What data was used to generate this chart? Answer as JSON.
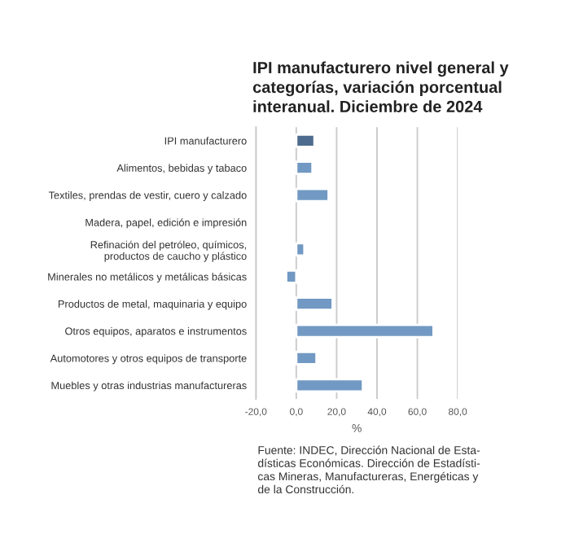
{
  "chart_data": {
    "type": "bar",
    "orientation": "horizontal",
    "title": "IPI manufacturero nivel general y\ncategorías, variación porcentual\ninteranual. Diciembre de 2024",
    "xlabel": "%",
    "categories": [
      "IPI manufacturero",
      "Alimentos, bebidas y tabaco",
      "Textiles, prendas de vestir, cuero y calzado",
      "Madera, papel, edición e impresión",
      "Refinación del petróleo, químicos,\nproductos de caucho y plástico",
      "Minerales no metálicos y metálicas básicas",
      "Productos de metal, maquinaria y equipo",
      "Otros equipos, aparatos e instrumentos",
      "Automotores y otros equipos de transporte",
      "Muebles y otras industrias manufactureras"
    ],
    "values": [
      9,
      8,
      16,
      null,
      4,
      -5,
      18,
      68,
      10,
      33
    ],
    "colors": [
      "#4d6b8e",
      "#7199c3",
      "#7199c3",
      "#7199c3",
      "#7199c3",
      "#7199c3",
      "#7199c3",
      "#7199c3",
      "#7199c3",
      "#7199c3"
    ],
    "xlim": [
      -20,
      80
    ],
    "xticks": [
      {
        "value": -20,
        "label": "-20,0"
      },
      {
        "value": 0,
        "label": "0,0"
      },
      {
        "value": 20,
        "label": "20,0"
      },
      {
        "value": 40,
        "label": "40,0"
      },
      {
        "value": 60,
        "label": "60,0"
      },
      {
        "value": 80,
        "label": "80,0"
      }
    ],
    "grid": "x",
    "annotations": [
      "Fuente: INDEC, Dirección Nacional de Esta-\ndísticas Económicas. Dirección de Estadísti-\ncas Mineras, Manufactureras, Energéticas y\nde la Construcción."
    ]
  }
}
